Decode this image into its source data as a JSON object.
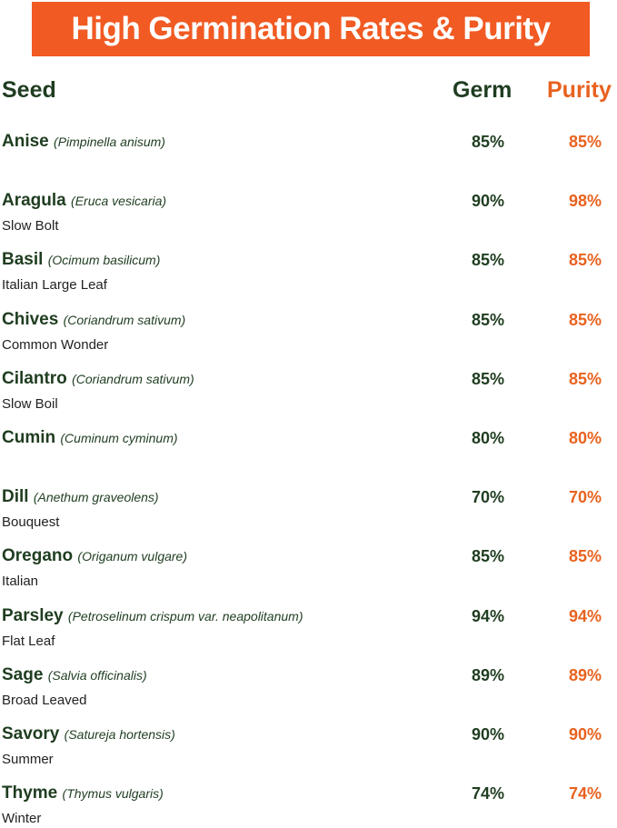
{
  "header": {
    "title": "High Germination Rates & Purity"
  },
  "table": {
    "columns": [
      "Seed",
      "Germ",
      "Purity"
    ],
    "rows": [
      {
        "name": "Anise",
        "latin": "(Pimpinella anisum)",
        "germ": "85%",
        "purity": "85%"
      },
      {
        "name": "Aragula",
        "latin": "(Eruca vesicaria)",
        "variety": "Slow Bolt",
        "germ": "90%",
        "purity": "98%"
      },
      {
        "name": "Basil",
        "latin": "(Ocimum basilicum)",
        "variety": "Italian Large Leaf",
        "germ": "85%",
        "purity": "85%"
      },
      {
        "name": "Chives",
        "latin": "(Coriandrum sativum)",
        "variety": "Common Wonder",
        "germ": "85%",
        "purity": "85%"
      },
      {
        "name": "Cilantro",
        "latin": "(Coriandrum sativum)",
        "variety": "Slow Boil",
        "germ": "85%",
        "purity": "85%"
      },
      {
        "name": "Cumin",
        "latin": "(Cuminum cyminum)",
        "germ": "80%",
        "purity": "80%"
      },
      {
        "name": "Dill",
        "latin": "(Anethum graveolens)",
        "variety": "Bouquest",
        "germ": "70%",
        "purity": "70%"
      },
      {
        "name": "Oregano",
        "latin": "(Origanum vulgare)",
        "variety": "Italian",
        "germ": "85%",
        "purity": "85%"
      },
      {
        "name": "Parsley",
        "latin": "(Petroselinum crispum var. neapolitanum)",
        "variety": "Flat Leaf",
        "germ": "94%",
        "purity": "94%"
      },
      {
        "name": "Sage",
        "latin": "(Salvia officinalis)",
        "variety": "Broad Leaved",
        "germ": "89%",
        "purity": "89%"
      },
      {
        "name": "Savory",
        "latin": "(Satureja hortensis)",
        "variety": "Summer",
        "germ": "90%",
        "purity": "90%"
      },
      {
        "name": "Thyme",
        "latin": "(Thymus vulgaris)",
        "variety": "Winter",
        "germ": "74%",
        "purity": "74%"
      }
    ]
  }
}
